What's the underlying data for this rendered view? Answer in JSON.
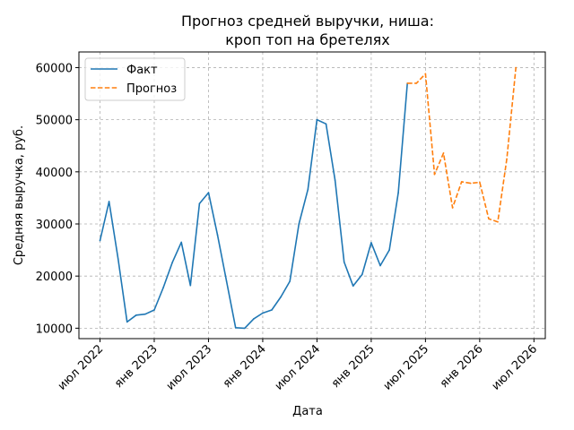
{
  "chart_data": {
    "type": "line",
    "title_line1": "Прогноз средней выручки, ниша:",
    "title_line2": "кроп топ на бретелях",
    "xlabel": "Дата",
    "ylabel": "Средняя выручка, руб.",
    "grid": true,
    "legend_position": "top-left",
    "ylim": [
      8000,
      63000
    ],
    "y_ticks": [
      10000,
      20000,
      30000,
      40000,
      50000,
      60000
    ],
    "x_ticks": [
      {
        "date": "2022-07",
        "label": "июл 2022"
      },
      {
        "date": "2023-01",
        "label": "янв 2023"
      },
      {
        "date": "2023-07",
        "label": "июл 2023"
      },
      {
        "date": "2024-01",
        "label": "янв 2024"
      },
      {
        "date": "2024-07",
        "label": "июл 2024"
      },
      {
        "date": "2025-01",
        "label": "янв 2025"
      },
      {
        "date": "2025-07",
        "label": "июл 2025"
      },
      {
        "date": "2026-01",
        "label": "янв 2026"
      },
      {
        "date": "2026-07",
        "label": "июл 2026"
      }
    ],
    "series": [
      {
        "name": "Факт",
        "color": "#1f77b4",
        "style": "solid",
        "points": [
          {
            "x": "2022-07",
            "y": 26800
          },
          {
            "x": "2022-08",
            "y": 34300
          },
          {
            "x": "2022-09",
            "y": 23300
          },
          {
            "x": "2022-10",
            "y": 11200
          },
          {
            "x": "2022-11",
            "y": 12500
          },
          {
            "x": "2022-12",
            "y": 12700
          },
          {
            "x": "2023-01",
            "y": 13500
          },
          {
            "x": "2023-02",
            "y": 17800
          },
          {
            "x": "2023-03",
            "y": 22600
          },
          {
            "x": "2023-04",
            "y": 26500
          },
          {
            "x": "2023-05",
            "y": 18200
          },
          {
            "x": "2023-06",
            "y": 33900
          },
          {
            "x": "2023-07",
            "y": 36000
          },
          {
            "x": "2023-08",
            "y": 27900
          },
          {
            "x": "2023-09",
            "y": 19000
          },
          {
            "x": "2023-10",
            "y": 10100
          },
          {
            "x": "2023-11",
            "y": 10000
          },
          {
            "x": "2023-12",
            "y": 11800
          },
          {
            "x": "2024-01",
            "y": 12900
          },
          {
            "x": "2024-02",
            "y": 13500
          },
          {
            "x": "2024-03",
            "y": 16000
          },
          {
            "x": "2024-04",
            "y": 19000
          },
          {
            "x": "2024-05",
            "y": 30000
          },
          {
            "x": "2024-06",
            "y": 36600
          },
          {
            "x": "2024-07",
            "y": 50000
          },
          {
            "x": "2024-08",
            "y": 49200
          },
          {
            "x": "2024-09",
            "y": 38400
          },
          {
            "x": "2024-10",
            "y": 22700
          },
          {
            "x": "2024-11",
            "y": 18100
          },
          {
            "x": "2024-12",
            "y": 20300
          },
          {
            "x": "2025-01",
            "y": 26400
          },
          {
            "x": "2025-02",
            "y": 22000
          },
          {
            "x": "2025-03",
            "y": 25000
          },
          {
            "x": "2025-04",
            "y": 36000
          },
          {
            "x": "2025-05",
            "y": 57000
          }
        ]
      },
      {
        "name": "Прогноз",
        "color": "#ff7f0e",
        "style": "dashed",
        "points": [
          {
            "x": "2025-05",
            "y": 57000
          },
          {
            "x": "2025-06",
            "y": 57000
          },
          {
            "x": "2025-07",
            "y": 58800
          },
          {
            "x": "2025-08",
            "y": 39500
          },
          {
            "x": "2025-09",
            "y": 43600
          },
          {
            "x": "2025-10",
            "y": 33100
          },
          {
            "x": "2025-11",
            "y": 38100
          },
          {
            "x": "2025-12",
            "y": 37800
          },
          {
            "x": "2026-01",
            "y": 38000
          },
          {
            "x": "2026-02",
            "y": 31000
          },
          {
            "x": "2026-03",
            "y": 30400
          },
          {
            "x": "2026-04",
            "y": 42500
          },
          {
            "x": "2026-05",
            "y": 60000
          }
        ]
      }
    ]
  }
}
